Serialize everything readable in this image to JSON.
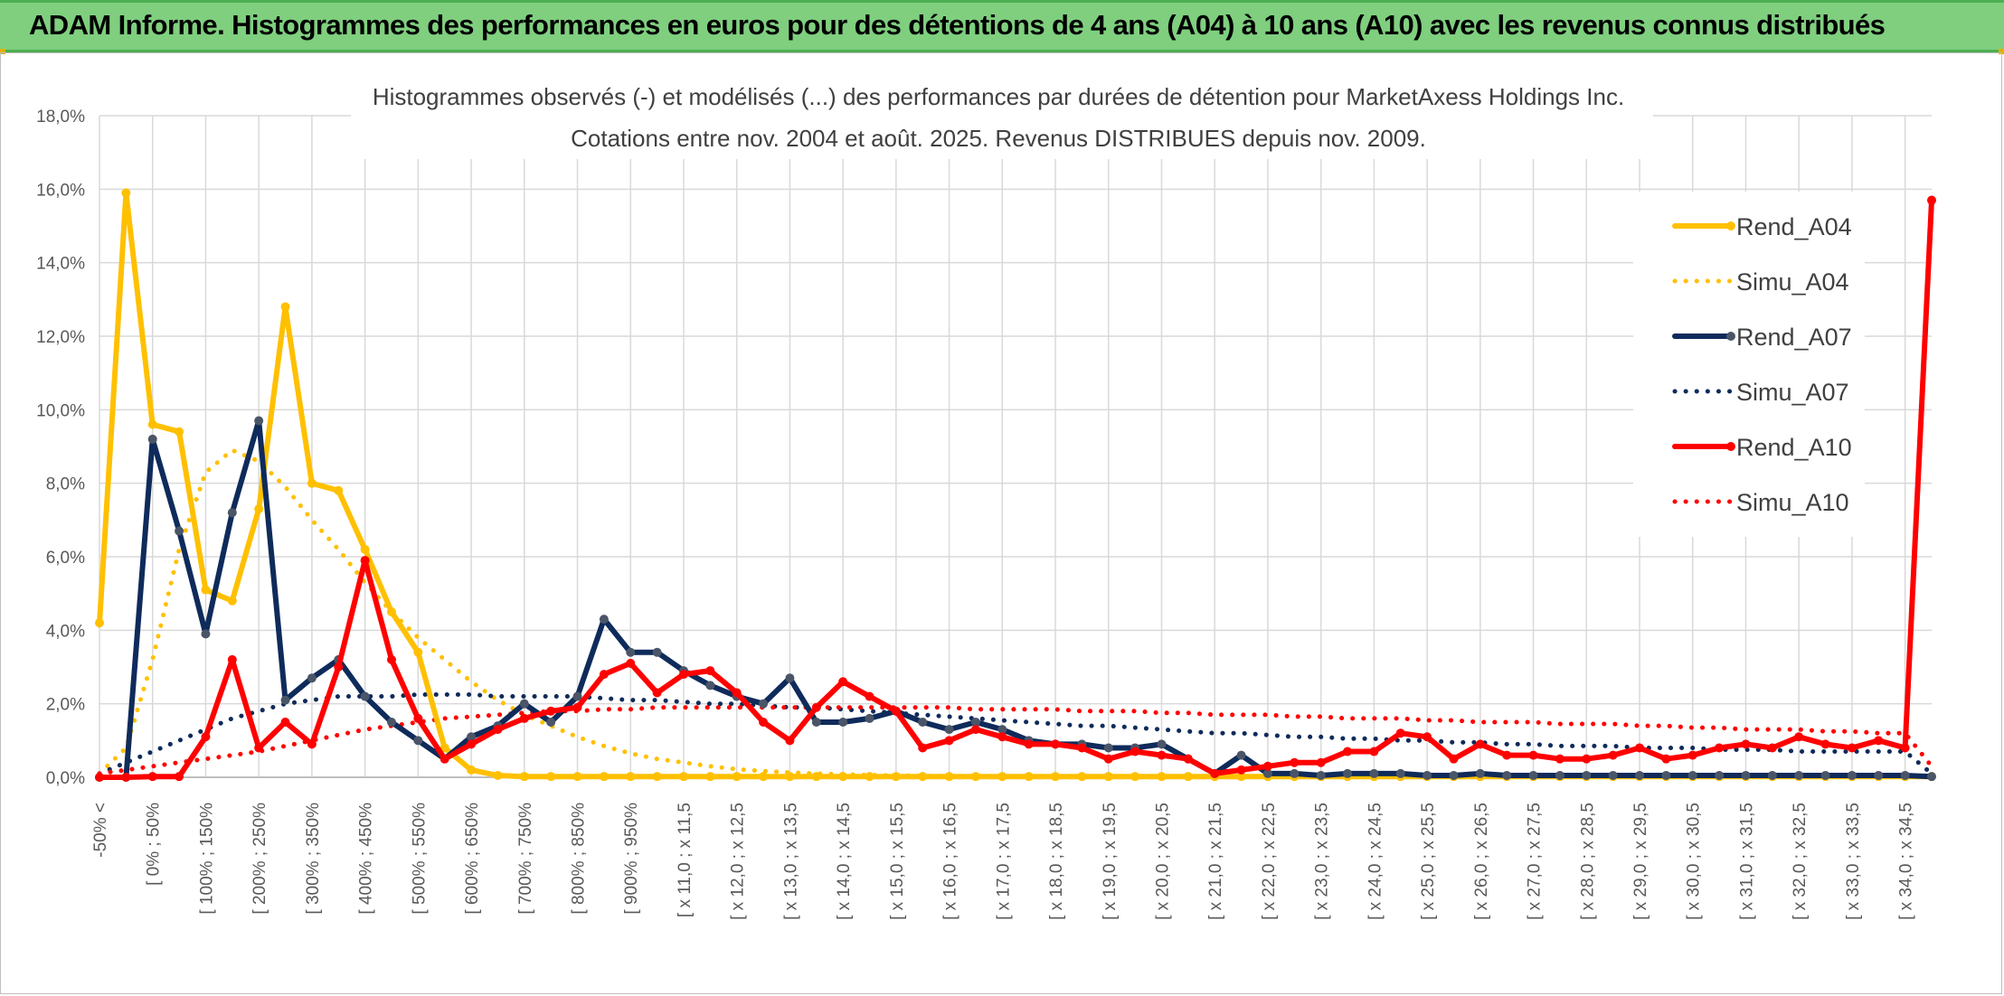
{
  "header": {
    "title": "ADAM Informe. Histogrammes des performances en euros pour des détentions de 4 ans (A04) à 10 ans (A10) avec les revenus connus distribués"
  },
  "colors": {
    "banner": "#7fcf7f",
    "a04": "#ffc000",
    "a07": "#0f2b5b",
    "a10": "#ff0000",
    "marker07": "#4a5568"
  },
  "chart_data": {
    "type": "line",
    "title": "Histogrammes observés (-) et modélisés (...) des performances par durées de détention pour MarketAxess Holdings Inc.",
    "subtitle": "Cotations entre nov. 2004 et août. 2025. Revenus DISTRIBUES depuis nov. 2009.",
    "xlabel": "",
    "ylabel": "",
    "ylim": [
      0,
      18
    ],
    "y_ticks": [
      "0,0%",
      "2,0%",
      "4,0%",
      "6,0%",
      "8,0%",
      "10,0%",
      "12,0%",
      "14,0%",
      "16,0%",
      "18,0%"
    ],
    "grid": true,
    "legend_position": "right",
    "x_tick_labels": [
      "-50% <",
      "[ 0% ; 50%",
      "[ 100% ; 150%",
      "[ 200% ; 250%",
      "[ 300% ; 350%",
      "[ 400% ; 450%",
      "[ 500% ; 550%",
      "[ 600% ; 650%",
      "[ 700% ; 750%",
      "[ 800% ; 850%",
      "[ 900% ; 950%",
      "[ x 11,0 ; x 11,5",
      "[ x 12,0 ; x 12,5",
      "[ x 13,0 ; x 13,5",
      "[ x 14,0 ; x 14,5",
      "[ x 15,0 ; x 15,5",
      "[ x 16,0 ; x 16,5",
      "[ x 17,0 ; x 17,5",
      "[ x 18,0 ; x 18,5",
      "[ x 19,0 ; x 19,5",
      "[ x 20,0 ; x 20,5",
      "[ x 21,0 ; x 21,5",
      "[ x 22,0 ; x 22,5",
      "[ x 23,0 ; x 23,5",
      "[ x 24,0 ; x 24,5",
      "[ x 25,0 ; x 25,5",
      "[ x 26,0 ; x 26,5",
      "[ x 27,0 ; x 27,5",
      "[ x 28,0 ; x 28,5",
      "[ x 29,0 ; x 29,5",
      "[ x 30,0 ; x 30,5",
      "[ x 31,0 ; x 31,5",
      "[ x 32,0 ; x 32,5",
      "[ x 33,0 ; x 33,5",
      "[ x 34,0 ; x 34,5"
    ],
    "series": [
      {
        "name": "Rend_A04",
        "values": [
          4.2,
          15.9,
          9.6,
          9.4,
          5.1,
          4.8,
          7.3,
          12.8,
          8.0,
          7.8,
          6.2,
          4.5,
          3.4,
          0.8,
          0.2,
          0.05,
          0.02,
          0.02,
          0.02,
          0.02,
          0.02,
          0.02,
          0.02,
          0.02,
          0.02,
          0.02,
          0.02,
          0.02,
          0.02,
          0.02,
          0.02,
          0.02,
          0.02,
          0.02,
          0.02,
          0.02,
          0.02,
          0.02,
          0.02,
          0.02,
          0.02,
          0.02,
          0.02,
          0.02,
          0.02,
          0.02,
          0.02,
          0.02,
          0.02,
          0.02,
          0.02,
          0.02,
          0.02,
          0.02,
          0.02,
          0.02,
          0.02,
          0.02,
          0.02,
          0.02,
          0.02,
          0.02,
          0.02,
          0.02,
          0.02,
          0.02,
          0.02,
          0.02,
          0.02,
          0.02
        ]
      },
      {
        "name": "Simu_A04",
        "values": [
          0.1,
          0.8,
          3.2,
          6.2,
          8.3,
          8.9,
          8.6,
          7.9,
          7.0,
          6.2,
          5.3,
          4.5,
          3.8,
          3.2,
          2.6,
          2.1,
          1.7,
          1.4,
          1.1,
          0.85,
          0.65,
          0.5,
          0.4,
          0.3,
          0.22,
          0.17,
          0.13,
          0.1,
          0.08,
          0.06,
          0.05,
          0.04,
          0.03,
          0.02,
          0.02,
          0.01,
          0.01,
          0.01,
          0.01,
          0.01,
          0.01,
          0.01,
          0.01,
          0.01,
          0.01,
          0.01,
          0.01,
          0.01,
          0.01,
          0.01,
          0.01,
          0.01,
          0.01,
          0.01,
          0.01,
          0.01,
          0.01,
          0.01,
          0.01,
          0.01,
          0.01,
          0.01,
          0.01,
          0.01,
          0.01,
          0.01,
          0.01,
          0.01,
          0.01,
          0.01
        ]
      },
      {
        "name": "Rend_A07",
        "values": [
          0.0,
          0.0,
          9.2,
          6.7,
          3.9,
          7.2,
          9.7,
          2.1,
          2.7,
          3.2,
          2.2,
          1.5,
          1.0,
          0.5,
          1.1,
          1.4,
          2.0,
          1.5,
          2.2,
          4.3,
          3.4,
          3.4,
          2.9,
          2.5,
          2.2,
          2.0,
          2.7,
          1.5,
          1.5,
          1.6,
          1.8,
          1.5,
          1.3,
          1.5,
          1.3,
          1.0,
          0.9,
          0.9,
          0.8,
          0.8,
          0.9,
          0.5,
          0.1,
          0.6,
          0.1,
          0.1,
          0.05,
          0.1,
          0.1,
          0.1,
          0.05,
          0.05,
          0.1,
          0.05,
          0.05,
          0.05,
          0.05,
          0.05,
          0.05,
          0.05,
          0.05,
          0.05,
          0.05,
          0.05,
          0.05,
          0.05,
          0.05,
          0.05,
          0.05,
          0.02
        ]
      },
      {
        "name": "Simu_A07",
        "values": [
          0.1,
          0.4,
          0.7,
          1.0,
          1.3,
          1.6,
          1.8,
          2.0,
          2.1,
          2.2,
          2.2,
          2.2,
          2.25,
          2.25,
          2.25,
          2.2,
          2.2,
          2.2,
          2.2,
          2.15,
          2.1,
          2.1,
          2.05,
          2.0,
          2.0,
          1.95,
          1.9,
          1.9,
          1.85,
          1.8,
          1.75,
          1.7,
          1.65,
          1.6,
          1.55,
          1.5,
          1.45,
          1.4,
          1.4,
          1.35,
          1.3,
          1.25,
          1.2,
          1.2,
          1.15,
          1.1,
          1.1,
          1.05,
          1.05,
          1.0,
          1.0,
          0.95,
          0.95,
          0.9,
          0.9,
          0.85,
          0.85,
          0.85,
          0.8,
          0.8,
          0.8,
          0.75,
          0.75,
          0.75,
          0.7,
          0.7,
          0.7,
          0.7,
          0.7,
          0.1
        ]
      },
      {
        "name": "Rend_A10",
        "values": [
          0.0,
          0.0,
          0.02,
          0.02,
          1.1,
          3.2,
          0.8,
          1.5,
          0.9,
          3.0,
          5.9,
          3.2,
          1.6,
          0.5,
          0.9,
          1.3,
          1.6,
          1.8,
          1.9,
          2.8,
          3.1,
          2.3,
          2.8,
          2.9,
          2.3,
          1.5,
          1.0,
          1.9,
          2.6,
          2.2,
          1.8,
          0.8,
          1.0,
          1.3,
          1.1,
          0.9,
          0.9,
          0.8,
          0.5,
          0.7,
          0.6,
          0.5,
          0.1,
          0.2,
          0.3,
          0.4,
          0.4,
          0.7,
          0.7,
          1.2,
          1.1,
          0.5,
          0.9,
          0.6,
          0.6,
          0.5,
          0.5,
          0.6,
          0.8,
          0.5,
          0.6,
          0.8,
          0.9,
          0.8,
          1.1,
          0.9,
          0.8,
          1.0,
          0.8,
          15.7
        ]
      },
      {
        "name": "Simu_A10",
        "values": [
          0.1,
          0.2,
          0.3,
          0.4,
          0.5,
          0.6,
          0.7,
          0.85,
          1.0,
          1.15,
          1.3,
          1.4,
          1.5,
          1.6,
          1.65,
          1.7,
          1.75,
          1.8,
          1.8,
          1.85,
          1.85,
          1.9,
          1.9,
          1.9,
          1.9,
          1.9,
          1.9,
          1.9,
          1.9,
          1.9,
          1.9,
          1.9,
          1.9,
          1.85,
          1.85,
          1.85,
          1.85,
          1.8,
          1.8,
          1.8,
          1.75,
          1.75,
          1.7,
          1.7,
          1.7,
          1.65,
          1.65,
          1.6,
          1.6,
          1.6,
          1.55,
          1.55,
          1.5,
          1.5,
          1.5,
          1.45,
          1.45,
          1.45,
          1.4,
          1.4,
          1.35,
          1.35,
          1.3,
          1.3,
          1.3,
          1.25,
          1.25,
          1.2,
          1.2,
          0.3
        ]
      }
    ]
  }
}
